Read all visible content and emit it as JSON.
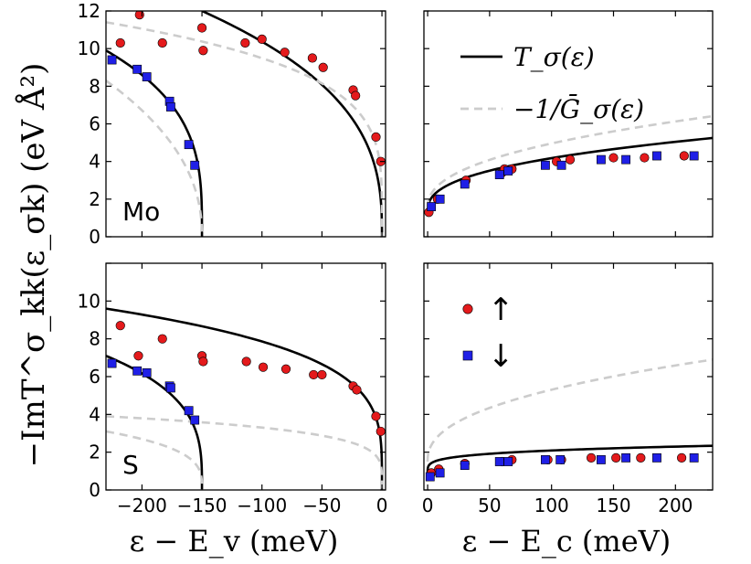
{
  "chart_data": [
    {
      "type": "scatter",
      "panel_label": "Mo",
      "xlim": [
        -230,
        3
      ],
      "ylim": [
        0,
        12
      ],
      "xticks": [
        -200,
        -150,
        -100,
        -50,
        0
      ],
      "xtick_labels": [
        "",
        "",
        "",
        "",
        ""
      ],
      "yticks": [
        0,
        2,
        4,
        6,
        8,
        10,
        12
      ],
      "ytick_labels": [
        "0",
        "2",
        "4",
        "6",
        "8",
        "10",
        "12"
      ],
      "series": [
        {
          "kind": "line",
          "color": "#000000",
          "dashed": false,
          "edge": -150,
          "x_left": -230,
          "y_left": 9.9,
          "power": 0.3
        },
        {
          "kind": "line",
          "color": "#000000",
          "dashed": false,
          "edge": 0,
          "x_left": -150,
          "y_left": 12.0,
          "power": 0.36
        },
        {
          "kind": "line",
          "color": "#cccccc",
          "dashed": true,
          "edge": -150,
          "x_left": -230,
          "y_left": 8.3,
          "power": 0.45
        },
        {
          "kind": "line",
          "color": "#cccccc",
          "dashed": true,
          "edge": 0,
          "x_left": -230,
          "y_left": 11.4,
          "power": 0.22
        },
        {
          "kind": "points",
          "marker": "circle",
          "color": "#e41a1c",
          "x": [
            -218,
            -202,
            -183,
            -150,
            -149,
            -114,
            -100,
            -81,
            -58,
            -49,
            -24,
            -22,
            -5,
            -1
          ],
          "y": [
            10.3,
            11.8,
            10.3,
            11.1,
            9.9,
            10.3,
            10.5,
            9.8,
            9.5,
            9.0,
            7.8,
            7.5,
            5.3,
            4.0
          ]
        },
        {
          "kind": "points",
          "marker": "square",
          "color": "#1f1fe6",
          "x": [
            -225,
            -204,
            -196,
            -177,
            -176,
            -161,
            -156
          ],
          "y": [
            9.4,
            8.9,
            8.5,
            7.2,
            6.9,
            4.9,
            3.8
          ]
        }
      ]
    },
    {
      "type": "scatter",
      "panel_label": "",
      "xlim": [
        -3,
        230
      ],
      "ylim": [
        0,
        12
      ],
      "xticks": [
        0,
        50,
        100,
        150,
        200
      ],
      "xtick_labels": [
        "",
        "",
        "",
        "",
        ""
      ],
      "yticks": [
        0,
        2,
        4,
        6,
        8,
        10,
        12
      ],
      "ytick_labels": [
        "",
        "",
        "",
        "",
        "",
        "",
        ""
      ],
      "legend": {
        "placement": "top-right",
        "entries": [
          {
            "label": "T_σ(ε)",
            "color": "#000000",
            "dashed": false
          },
          {
            "label": "−1/Ḡ_σ(ε)",
            "color": "#cccccc",
            "dashed": true
          }
        ]
      },
      "series": [
        {
          "kind": "line",
          "color": "#000000",
          "dashed": false,
          "edge": 0,
          "x_right": 230,
          "y0": 1.3,
          "a": 0.5,
          "power": 0.38
        },
        {
          "kind": "line",
          "color": "#cccccc",
          "dashed": true,
          "edge": 0,
          "x_right": 230,
          "y0": 1.5,
          "a": 0.5,
          "power": 0.42
        },
        {
          "kind": "points",
          "marker": "circle",
          "color": "#e41a1c",
          "x": [
            1,
            8,
            30,
            31,
            60,
            62,
            68,
            104,
            115,
            150,
            175,
            207
          ],
          "y": [
            1.3,
            2.0,
            2.9,
            3.0,
            3.4,
            3.6,
            3.6,
            4.0,
            4.1,
            4.2,
            4.2,
            4.3
          ]
        },
        {
          "kind": "points",
          "marker": "square",
          "color": "#1f1fe6",
          "x": [
            3,
            10,
            30,
            58,
            65,
            95,
            108,
            140,
            160,
            185,
            215
          ],
          "y": [
            1.6,
            2.0,
            2.8,
            3.3,
            3.5,
            3.8,
            3.8,
            4.1,
            4.1,
            4.3,
            4.3
          ]
        }
      ]
    },
    {
      "type": "scatter",
      "panel_label": "S",
      "xlim": [
        -230,
        3
      ],
      "ylim": [
        0,
        12
      ],
      "xticks": [
        -200,
        -150,
        -100,
        -50,
        0
      ],
      "xtick_labels": [
        "−200",
        "−150",
        "−100",
        "−50",
        "0"
      ],
      "yticks": [
        0,
        2,
        4,
        6,
        8,
        10,
        12
      ],
      "ytick_labels": [
        "0",
        "2",
        "4",
        "6",
        "8",
        "10",
        ""
      ],
      "series": [
        {
          "kind": "line",
          "color": "#000000",
          "dashed": false,
          "edge": -150,
          "x_left": -230,
          "y_left": 7.1,
          "power": 0.3
        },
        {
          "kind": "line",
          "color": "#000000",
          "dashed": false,
          "edge": 0,
          "x_left": -230,
          "y_left": 9.6,
          "power": 0.24
        },
        {
          "kind": "line",
          "color": "#cccccc",
          "dashed": true,
          "edge": -150,
          "x_left": -230,
          "y_left": 3.1,
          "power": 0.3
        },
        {
          "kind": "line",
          "color": "#cccccc",
          "dashed": true,
          "edge": 0,
          "x_left": -230,
          "y_left": 3.9,
          "power": 0.2
        },
        {
          "kind": "points",
          "marker": "circle",
          "color": "#e41a1c",
          "x": [
            -218,
            -203,
            -183,
            -150,
            -149,
            -113,
            -99,
            -80,
            -57,
            -50,
            -24,
            -21,
            -5,
            -1
          ],
          "y": [
            8.7,
            7.1,
            8.0,
            7.1,
            6.8,
            6.8,
            6.5,
            6.4,
            6.1,
            6.1,
            5.5,
            5.3,
            3.9,
            3.1
          ]
        },
        {
          "kind": "points",
          "marker": "square",
          "color": "#1f1fe6",
          "x": [
            -225,
            -204,
            -196,
            -177,
            -176,
            -161,
            -156
          ],
          "y": [
            6.7,
            6.3,
            6.2,
            5.5,
            5.4,
            4.2,
            3.7
          ]
        }
      ]
    },
    {
      "type": "scatter",
      "panel_label": "",
      "xlim": [
        -3,
        230
      ],
      "ylim": [
        0,
        12
      ],
      "xticks": [
        0,
        50,
        100,
        150,
        200
      ],
      "xtick_labels": [
        "0",
        "50",
        "100",
        "150",
        "200"
      ],
      "yticks": [
        0,
        2,
        4,
        6,
        8,
        10,
        12
      ],
      "ytick_labels": [
        "",
        "",
        "",
        "",
        "",
        "",
        ""
      ],
      "legend": {
        "placement": "top-left",
        "entries": [
          {
            "label": "↑",
            "marker": "circle",
            "color": "#e41a1c"
          },
          {
            "label": "↓",
            "marker": "square",
            "color": "#1f1fe6"
          }
        ]
      },
      "series": [
        {
          "kind": "line",
          "color": "#000000",
          "dashed": false,
          "edge": 0,
          "x_right": 230,
          "y0": 0.85,
          "a": 0.45,
          "power": 0.22
        },
        {
          "kind": "line",
          "color": "#cccccc",
          "dashed": true,
          "edge": 0,
          "x_right": 230,
          "y0": 1.5,
          "a": 0.55,
          "power": 0.42
        },
        {
          "kind": "points",
          "marker": "circle",
          "color": "#e41a1c",
          "x": [
            3,
            9,
            30,
            60,
            68,
            97,
            108,
            132,
            152,
            172,
            205
          ],
          "y": [
            0.9,
            1.1,
            1.4,
            1.5,
            1.6,
            1.6,
            1.6,
            1.7,
            1.7,
            1.7,
            1.7
          ]
        },
        {
          "kind": "points",
          "marker": "square",
          "color": "#1f1fe6",
          "x": [
            2,
            10,
            30,
            58,
            65,
            95,
            107,
            140,
            160,
            185,
            215
          ],
          "y": [
            0.7,
            0.9,
            1.3,
            1.5,
            1.5,
            1.6,
            1.6,
            1.6,
            1.7,
            1.7,
            1.7
          ]
        }
      ]
    }
  ],
  "axis_labels": {
    "y": "−ImT^σ_kk(ε_σk) (eV Å²)",
    "x_left": "ε − E_v (meV)",
    "x_right": "ε − E_c (meV)"
  }
}
